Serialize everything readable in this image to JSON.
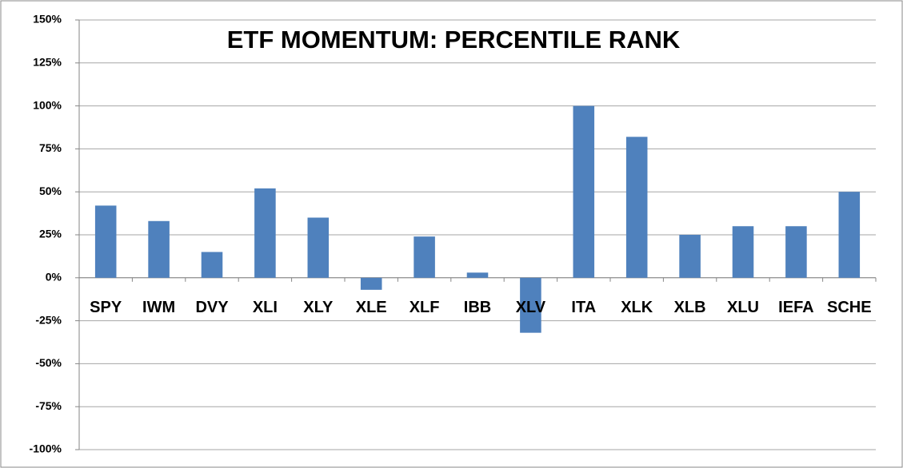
{
  "chart_data": {
    "type": "bar",
    "title": "ETF MOMENTUM: PERCENTILE RANK",
    "categories": [
      "SPY",
      "IWM",
      "DVY",
      "XLI",
      "XLY",
      "XLE",
      "XLF",
      "IBB",
      "XLV",
      "ITA",
      "XLK",
      "XLB",
      "XLU",
      "IEFA",
      "SCHE"
    ],
    "values": [
      42,
      33,
      15,
      52,
      35,
      -7,
      24,
      3,
      -32,
      100,
      82,
      25,
      30,
      30,
      50
    ],
    "color": "#4f81bd",
    "ylim": [
      -100,
      150
    ],
    "yticks": [
      {
        "value": -100,
        "label": "-100%"
      },
      {
        "value": -75,
        "label": "-75%"
      },
      {
        "value": -50,
        "label": "-50%"
      },
      {
        "value": -25,
        "label": "-25%"
      },
      {
        "value": 0,
        "label": "0%"
      },
      {
        "value": 25,
        "label": "25%"
      },
      {
        "value": 50,
        "label": "50%"
      },
      {
        "value": 75,
        "label": "75%"
      },
      {
        "value": 100,
        "label": "100%"
      },
      {
        "value": 125,
        "label": "125%"
      },
      {
        "value": 150,
        "label": "150%"
      }
    ],
    "grid": true
  }
}
